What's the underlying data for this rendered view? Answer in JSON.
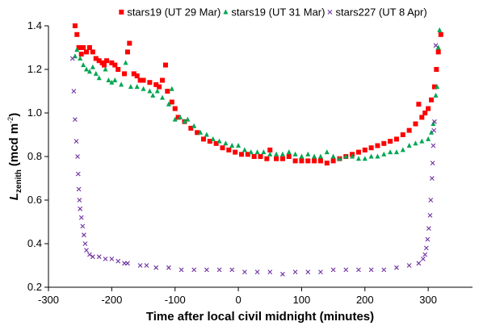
{
  "chart_data": {
    "type": "scatter",
    "x_label": "Time after local civil midnight (minutes)",
    "y_label": {
      "symbol": "L",
      "subscript": "zenith",
      "unit": "(mcd m",
      "superscript": "-2",
      "close": ")"
    },
    "xlim": [
      -300,
      370
    ],
    "ylim": [
      0.2,
      1.4
    ],
    "xticks": [
      -300,
      -200,
      -100,
      0,
      100,
      200,
      300
    ],
    "yticks": [
      0.2,
      0.4,
      0.6,
      0.8,
      {
        "value": 1.0,
        "label": "1.0"
      },
      1.2,
      1.4
    ],
    "grid": false,
    "legend": "top",
    "series": [
      {
        "name": "stars19 (UT 29 Mar)",
        "color": "#ff0000",
        "marker": "square",
        "x": [
          -258,
          -255,
          -252,
          -248,
          -245,
          -240,
          -235,
          -230,
          -225,
          -220,
          -215,
          -212,
          -208,
          -200,
          -195,
          -190,
          -180,
          -175,
          -172,
          -165,
          -160,
          -155,
          -150,
          -140,
          -130,
          -125,
          -120,
          -115,
          -112,
          -105,
          -100,
          -95,
          -85,
          -75,
          -65,
          -55,
          -45,
          -35,
          -25,
          -15,
          -5,
          5,
          15,
          25,
          35,
          45,
          50,
          60,
          70,
          80,
          90,
          100,
          110,
          120,
          130,
          140,
          150,
          160,
          170,
          180,
          190,
          200,
          210,
          220,
          230,
          240,
          250,
          260,
          270,
          280,
          285,
          290,
          295,
          300,
          305,
          310,
          313,
          316,
          320
        ],
        "values": [
          1.4,
          1.36,
          1.3,
          1.27,
          1.3,
          1.28,
          1.3,
          1.28,
          1.25,
          1.24,
          1.23,
          1.22,
          1.24,
          1.23,
          1.22,
          1.2,
          1.18,
          1.28,
          1.32,
          1.18,
          1.17,
          1.15,
          1.15,
          1.14,
          1.13,
          1.12,
          1.15,
          1.22,
          1.1,
          1.05,
          1.02,
          0.98,
          0.96,
          0.93,
          0.91,
          0.88,
          0.87,
          0.86,
          0.84,
          0.83,
          0.82,
          0.81,
          0.81,
          0.8,
          0.8,
          0.79,
          0.83,
          0.79,
          0.79,
          0.8,
          0.78,
          0.78,
          0.78,
          0.78,
          0.78,
          0.77,
          0.78,
          0.79,
          0.8,
          0.81,
          0.82,
          0.83,
          0.84,
          0.85,
          0.86,
          0.87,
          0.88,
          0.9,
          0.92,
          0.95,
          1.04,
          0.98,
          1.0,
          1.02,
          1.06,
          1.12,
          1.2,
          1.28,
          1.36
        ]
      },
      {
        "name": "stars19 (UT 31 Mar)",
        "color": "#00a651",
        "marker": "triangle",
        "x": [
          -258,
          -255,
          -250,
          -245,
          -240,
          -235,
          -230,
          -225,
          -220,
          -210,
          -205,
          -200,
          -195,
          -185,
          -178,
          -170,
          -160,
          -150,
          -140,
          -135,
          -128,
          -120,
          -110,
          -105,
          -100,
          -92,
          -85,
          -80,
          -70,
          -60,
          -50,
          -40,
          -30,
          -20,
          -10,
          0,
          10,
          20,
          30,
          40,
          50,
          60,
          70,
          80,
          90,
          100,
          110,
          120,
          130,
          140,
          150,
          160,
          170,
          180,
          190,
          200,
          210,
          220,
          230,
          240,
          250,
          260,
          270,
          280,
          290,
          300,
          305,
          308,
          312,
          314,
          316,
          318
        ],
        "values": [
          1.26,
          1.29,
          1.25,
          1.22,
          1.2,
          1.19,
          1.21,
          1.18,
          1.16,
          1.2,
          1.15,
          1.14,
          1.15,
          1.13,
          1.23,
          1.12,
          1.12,
          1.11,
          1.1,
          1.08,
          1.1,
          1.07,
          1.04,
          1.11,
          0.97,
          0.98,
          0.96,
          0.97,
          0.94,
          0.91,
          0.9,
          0.88,
          0.87,
          0.86,
          0.85,
          0.85,
          0.83,
          0.82,
          0.82,
          0.82,
          0.81,
          0.81,
          0.81,
          0.82,
          0.81,
          0.8,
          0.81,
          0.8,
          0.8,
          0.82,
          0.8,
          0.79,
          0.8,
          0.8,
          0.79,
          0.79,
          0.8,
          0.8,
          0.81,
          0.82,
          0.82,
          0.83,
          0.85,
          0.86,
          0.87,
          0.88,
          0.91,
          0.95,
          1.08,
          1.12,
          1.3,
          1.38
        ]
      },
      {
        "name": "stars227 (UT 8 Apr)",
        "color": "#7030a0",
        "marker": "x",
        "x": [
          -262,
          -260,
          -258,
          -256,
          -254,
          -253,
          -252,
          -251,
          -250,
          -248,
          -246,
          -244,
          -242,
          -240,
          -235,
          -230,
          -220,
          -210,
          -200,
          -190,
          -180,
          -175,
          -155,
          -145,
          -130,
          -110,
          -90,
          -70,
          -50,
          -30,
          -10,
          10,
          30,
          50,
          70,
          90,
          110,
          130,
          150,
          170,
          190,
          210,
          230,
          250,
          270,
          285,
          292,
          295,
          297,
          299,
          301,
          303,
          304,
          306,
          307,
          308,
          309,
          310,
          312
        ],
        "values": [
          1.25,
          1.1,
          0.97,
          0.87,
          0.8,
          0.72,
          0.65,
          0.6,
          0.56,
          0.52,
          0.48,
          0.44,
          0.4,
          0.37,
          0.35,
          0.34,
          0.34,
          0.33,
          0.33,
          0.32,
          0.31,
          0.31,
          0.3,
          0.3,
          0.29,
          0.29,
          0.28,
          0.28,
          0.28,
          0.28,
          0.28,
          0.27,
          0.27,
          0.27,
          0.26,
          0.27,
          0.27,
          0.27,
          0.28,
          0.28,
          0.28,
          0.28,
          0.28,
          0.29,
          0.3,
          0.31,
          0.33,
          0.35,
          0.38,
          0.42,
          0.47,
          0.53,
          0.6,
          0.7,
          0.77,
          0.85,
          0.92,
          0.96,
          1.31
        ]
      }
    ]
  }
}
